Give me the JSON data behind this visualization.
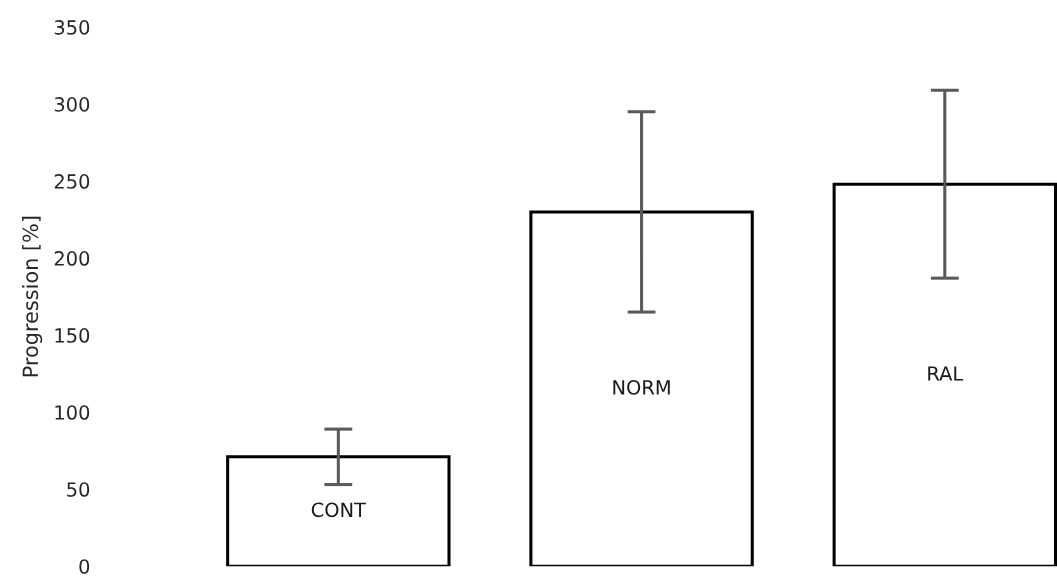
{
  "chart_data": {
    "type": "bar",
    "ylabel": "Progression [%]",
    "categories": [
      "CONT",
      "NORM",
      "RAL"
    ],
    "values": [
      71,
      230,
      248
    ],
    "errors": [
      18,
      65,
      61
    ],
    "color": "#ffffff",
    "ylim": [
      0,
      350
    ],
    "yticks": [
      0,
      50,
      100,
      150,
      200,
      250,
      300,
      350
    ],
    "grid": false
  }
}
